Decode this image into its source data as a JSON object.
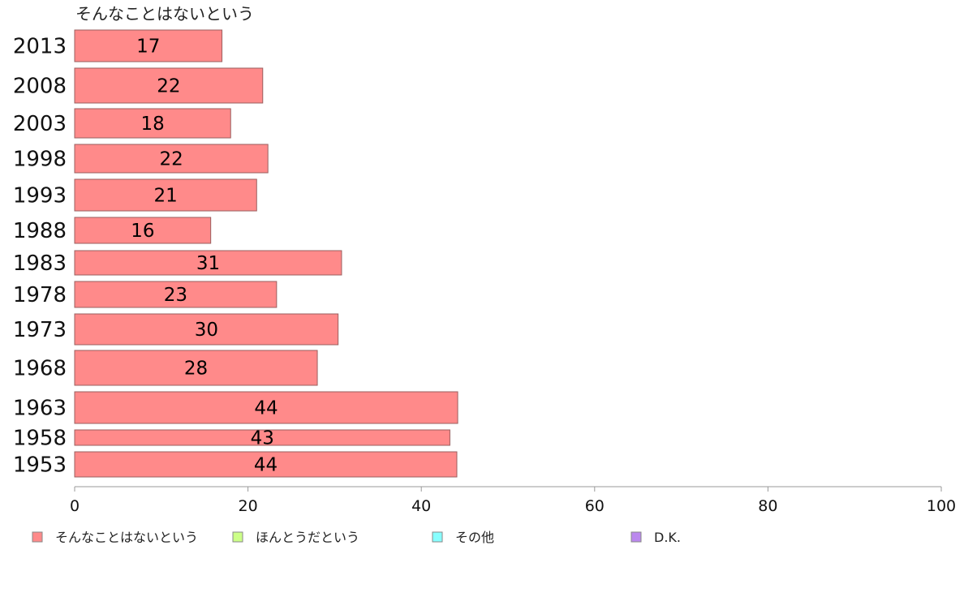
{
  "chart_data": {
    "type": "bar",
    "orientation": "horizontal",
    "series_title": "そんなことはないという",
    "categories": [
      "2013",
      "2008",
      "2003",
      "1998",
      "1993",
      "1988",
      "1983",
      "1978",
      "1973",
      "1968",
      "1963",
      "1958",
      "1953"
    ],
    "series": [
      {
        "name": "そんなことはないという",
        "color": "#ff8a8a",
        "values": [
          17,
          21.7,
          18,
          22.3,
          21,
          15.7,
          30.8,
          23.3,
          30.4,
          28,
          44.2,
          43.3,
          44.1
        ],
        "labels": [
          "17",
          "22",
          "18",
          "22",
          "21",
          "16",
          "31",
          "23",
          "30",
          "28",
          "44",
          "43",
          "44"
        ]
      }
    ],
    "xlim": [
      0,
      100
    ],
    "x_ticks": [
      "0",
      "20",
      "40",
      "60",
      "80",
      "100"
    ],
    "legend": {
      "position": "bottom",
      "items": [
        {
          "label": "そんなことはないという",
          "color": "#ff8a8a"
        },
        {
          "label": "ほんとうだという",
          "color": "#ccff88"
        },
        {
          "label": "その他",
          "color": "#88ffff"
        },
        {
          "label": "D.K.",
          "color": "#bb88ee"
        }
      ]
    },
    "grid": false
  }
}
